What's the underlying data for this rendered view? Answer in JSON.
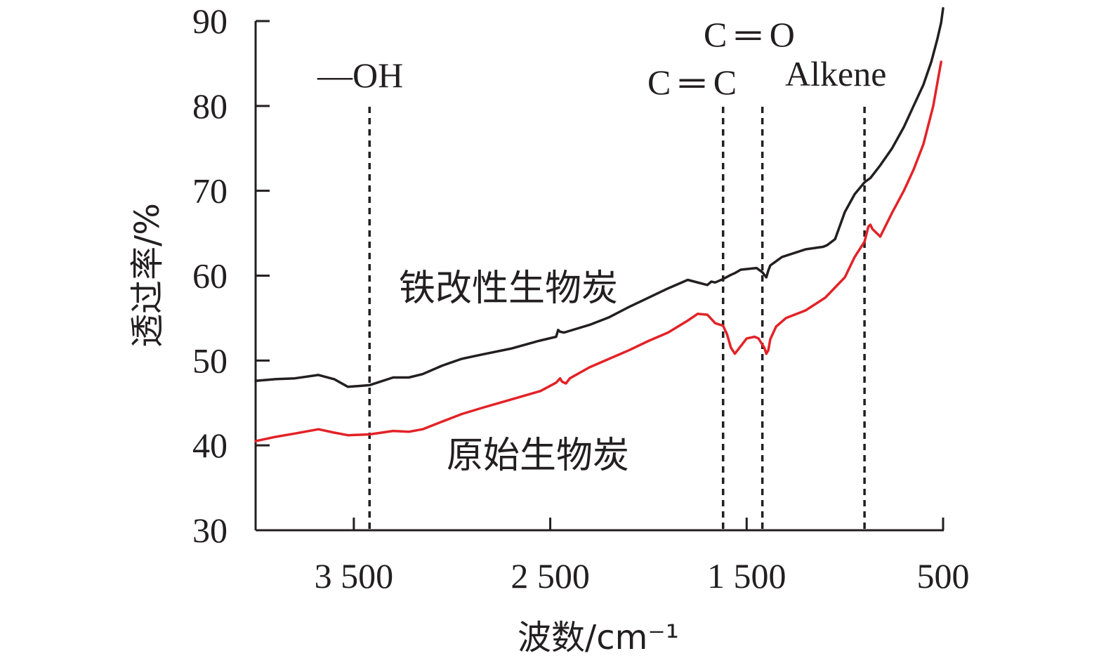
{
  "chart_data": {
    "type": "line",
    "title": "",
    "xlabel": "波数/cm⁻¹",
    "ylabel": "透过率/%",
    "xlim": [
      4000,
      500
    ],
    "ylim": [
      30,
      90
    ],
    "x_reversed": true,
    "x_ticks": [
      3500,
      2500,
      1500,
      500
    ],
    "x_tick_labels": [
      "3 500",
      "2 500",
      "1 500",
      "500"
    ],
    "y_ticks": [
      30,
      40,
      50,
      60,
      70,
      80,
      90
    ],
    "y_tick_labels": [
      "30",
      "40",
      "50",
      "60",
      "70",
      "80",
      "90"
    ],
    "grid": false,
    "legend": "none",
    "series": [
      {
        "name": "铁改性生物炭",
        "color": "#231f20",
        "x": [
          4000,
          3900,
          3800,
          3680,
          3600,
          3530,
          3420,
          3300,
          3220,
          3150,
          3050,
          2950,
          2850,
          2700,
          2560,
          2470,
          2460,
          2450,
          2430,
          2400,
          2300,
          2200,
          2100,
          2000,
          1900,
          1800,
          1700,
          1680,
          1660,
          1620,
          1580,
          1560,
          1530,
          1450,
          1420,
          1400,
          1395,
          1390,
          1380,
          1320,
          1200,
          1110,
          1090,
          1050,
          1000,
          950,
          900,
          870,
          820,
          760,
          700,
          650,
          600,
          560,
          530,
          510,
          500
        ],
        "y": [
          47.6,
          47.8,
          47.9,
          48.3,
          47.8,
          46.9,
          47.1,
          48.0,
          48.0,
          48.4,
          49.4,
          50.2,
          50.7,
          51.4,
          52.3,
          52.8,
          53.6,
          53.4,
          53.3,
          53.5,
          54.2,
          55.1,
          56.3,
          57.4,
          58.5,
          59.5,
          58.9,
          59.3,
          59.2,
          59.6,
          60.1,
          60.3,
          60.7,
          60.9,
          60.4,
          59.8,
          60.2,
          60.6,
          61.2,
          62.2,
          63.1,
          63.4,
          63.6,
          64.3,
          67.5,
          69.6,
          71.0,
          71.5,
          73.0,
          75.0,
          77.5,
          80.0,
          82.5,
          85.2,
          87.8,
          89.8,
          91.5
        ]
      },
      {
        "name": "原始生物炭",
        "color": "#e32227",
        "x": [
          4000,
          3900,
          3800,
          3680,
          3600,
          3530,
          3420,
          3300,
          3220,
          3150,
          3050,
          2950,
          2850,
          2700,
          2550,
          2470,
          2450,
          2440,
          2420,
          2400,
          2300,
          2200,
          2100,
          2000,
          1900,
          1800,
          1750,
          1700,
          1660,
          1620,
          1600,
          1580,
          1560,
          1500,
          1460,
          1440,
          1410,
          1400,
          1390,
          1380,
          1350,
          1300,
          1200,
          1100,
          1000,
          950,
          900,
          880,
          870,
          860,
          820,
          760,
          700,
          650,
          600,
          550,
          510
        ],
        "y": [
          40.5,
          41.0,
          41.4,
          41.9,
          41.5,
          41.2,
          41.3,
          41.7,
          41.6,
          41.9,
          42.8,
          43.7,
          44.4,
          45.4,
          46.4,
          47.4,
          47.9,
          47.5,
          47.3,
          47.9,
          49.2,
          50.2,
          51.2,
          52.3,
          53.3,
          54.7,
          55.5,
          55.4,
          54.4,
          54.1,
          53.1,
          51.5,
          50.8,
          52.6,
          52.8,
          52.6,
          51.5,
          50.8,
          51.2,
          52.5,
          54.0,
          55.0,
          55.9,
          57.4,
          59.8,
          62.2,
          64.0,
          65.8,
          66.0,
          65.5,
          64.6,
          67.4,
          70.0,
          72.5,
          75.5,
          80.0,
          85.2
        ]
      }
    ],
    "series_labels": [
      "铁改性生物炭",
      "原始生物炭"
    ],
    "reference_lines_x": [
      3420,
      1620,
      1420,
      900
    ],
    "annotations": [
      "—OH",
      "C ═ O",
      "C ═ C",
      "Alkene"
    ]
  }
}
